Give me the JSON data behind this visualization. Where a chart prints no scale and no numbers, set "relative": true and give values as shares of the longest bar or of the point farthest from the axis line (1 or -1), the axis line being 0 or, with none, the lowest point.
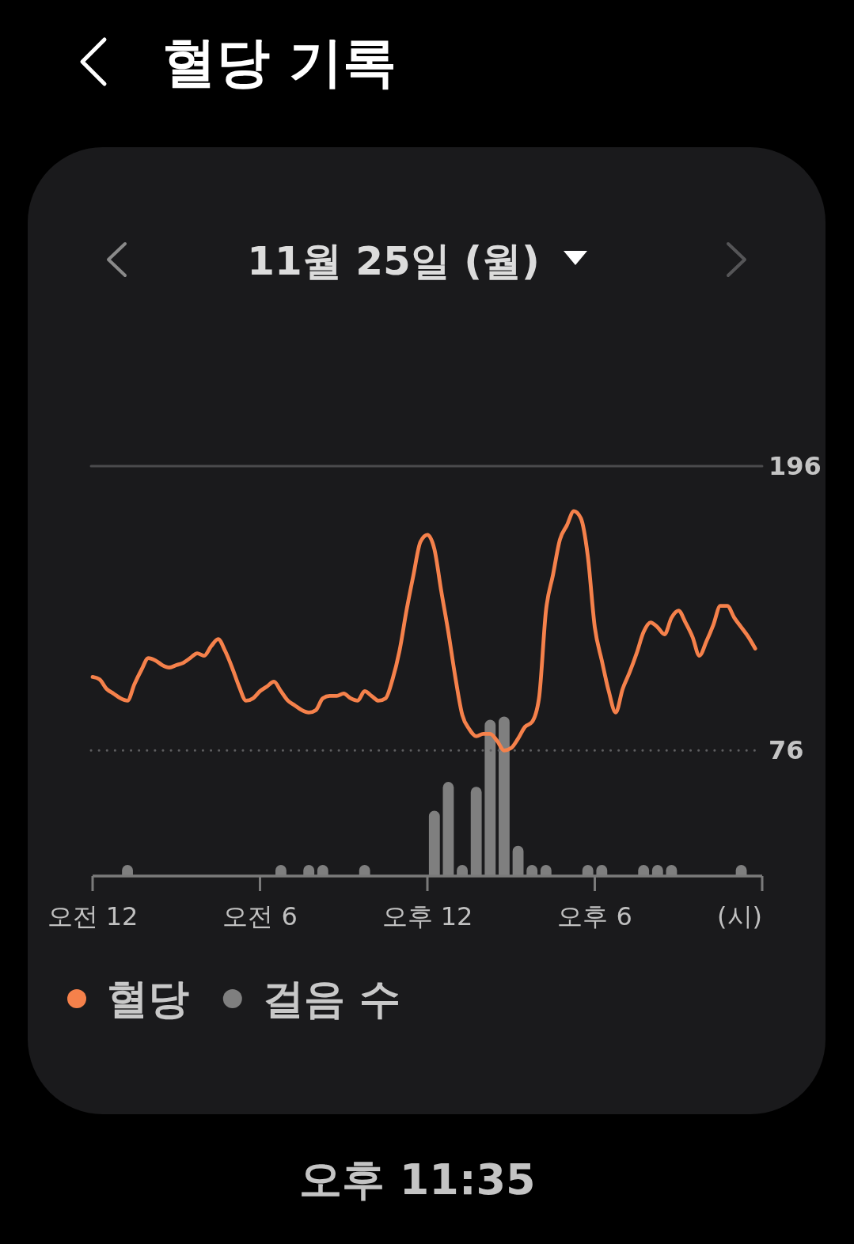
{
  "chart_data": [
    {
      "type": "line",
      "title": "혈당 기록",
      "subtitle": "11월 25일 (월)",
      "tick_labels": "y",
      "categories": [
        null,
        null,
        null,
        null,
        null,
        null,
        null,
        null,
        null,
        null,
        null,
        null,
        null,
        null,
        null,
        null,
        null,
        null,
        null,
        null,
        null,
        null,
        null,
        null,
        null,
        null,
        null,
        null,
        null,
        null,
        null,
        null,
        null,
        null,
        null,
        null,
        null,
        null,
        null,
        null,
        null,
        null,
        null,
        null,
        null,
        null,
        null,
        null,
        null,
        null,
        null,
        null,
        null,
        null,
        null,
        null,
        null,
        null,
        null,
        null,
        null,
        null,
        null,
        null,
        null,
        null,
        null,
        null,
        null,
        null,
        null,
        null,
        null,
        null,
        null,
        null,
        null,
        null,
        null,
        null,
        null,
        null,
        null,
        null,
        null,
        null,
        null,
        null,
        null,
        null,
        null,
        null,
        null,
        null,
        null,
        null,
        null
      ],
      "ylim": [
        23,
        196
      ],
      "yticks": [
        76,
        196
      ],
      "ref_lines": [
        {
          "axis": "y",
          "value": 196,
          "color": "#4a4a4c",
          "line_style": "solid"
        },
        {
          "axis": "y",
          "value": 76,
          "color": "#5e5e60",
          "line_style": "dotted"
        }
      ],
      "legend": "bottom left",
      "annotations": [
        "오후 11:35"
      ],
      "series": [
        {
          "name": "혈당",
          "color": "#f5814b",
          "values": [
            107,
            106,
            102,
            100,
            98,
            97,
            104,
            110,
            115,
            114,
            112,
            111,
            112,
            113,
            115,
            117,
            116,
            120,
            123,
            118,
            111,
            103,
            97,
            98,
            101,
            103,
            105,
            101,
            97,
            95,
            93,
            92,
            93,
            98,
            99,
            99,
            100,
            98,
            97,
            101,
            99,
            97,
            98,
            106,
            118,
            135,
            150,
            164,
            167,
            161,
            143,
            126,
            107,
            91,
            85,
            82,
            83,
            83,
            80,
            76,
            77,
            81,
            86,
            88,
            98,
            135,
            150,
            165,
            171,
            177,
            174,
            158,
            128,
            114,
            101,
            92,
            102,
            109,
            117,
            126,
            130,
            128,
            125,
            132,
            135,
            130,
            124,
            116,
            122,
            129,
            137,
            137,
            132,
            128,
            124,
            119,
            null
          ]
        }
      ]
    },
    {
      "type": "bar",
      "relative": true,
      "xlabel": "(시)",
      "categories": [
        "오전 12",
        null,
        null,
        null,
        null,
        null,
        null,
        null,
        null,
        null,
        null,
        null,
        null,
        null,
        null,
        null,
        null,
        null,
        null,
        null,
        null,
        null,
        null,
        null,
        "오전 6",
        null,
        null,
        null,
        null,
        null,
        null,
        null,
        null,
        null,
        null,
        null,
        null,
        null,
        null,
        null,
        null,
        null,
        null,
        null,
        null,
        null,
        null,
        null,
        "오후 12",
        null,
        null,
        null,
        null,
        null,
        null,
        null,
        null,
        null,
        null,
        null,
        null,
        null,
        null,
        null,
        null,
        null,
        null,
        null,
        null,
        null,
        null,
        null,
        "오후 6",
        null,
        null,
        null,
        null,
        null,
        null,
        null,
        null,
        null,
        null,
        null,
        null,
        null,
        null,
        null,
        null,
        null,
        null,
        null,
        null,
        null,
        null,
        null,
        null
      ],
      "legend": "bottom left",
      "series": [
        {
          "name": "걸음 수",
          "color": "#7f7f7f",
          "values": [
            null,
            null,
            null,
            null,
            null,
            0.07,
            null,
            null,
            null,
            null,
            null,
            null,
            null,
            null,
            null,
            null,
            null,
            null,
            null,
            null,
            null,
            null,
            null,
            null,
            null,
            null,
            null,
            0.07,
            null,
            null,
            null,
            0.07,
            null,
            0.07,
            null,
            null,
            null,
            null,
            null,
            0.07,
            null,
            null,
            null,
            null,
            null,
            null,
            null,
            null,
            null,
            0.41,
            null,
            0.59,
            null,
            0.07,
            null,
            0.56,
            null,
            0.98,
            null,
            1,
            null,
            0.19,
            null,
            0.07,
            null,
            0.07,
            null,
            null,
            null,
            null,
            null,
            0.07,
            null,
            0.07,
            null,
            null,
            null,
            null,
            null,
            0.07,
            null,
            0.07,
            null,
            0.07,
            null,
            null,
            null,
            null,
            null,
            null,
            null,
            null,
            null,
            0.07,
            null,
            null,
            null
          ]
        }
      ]
    }
  ]
}
